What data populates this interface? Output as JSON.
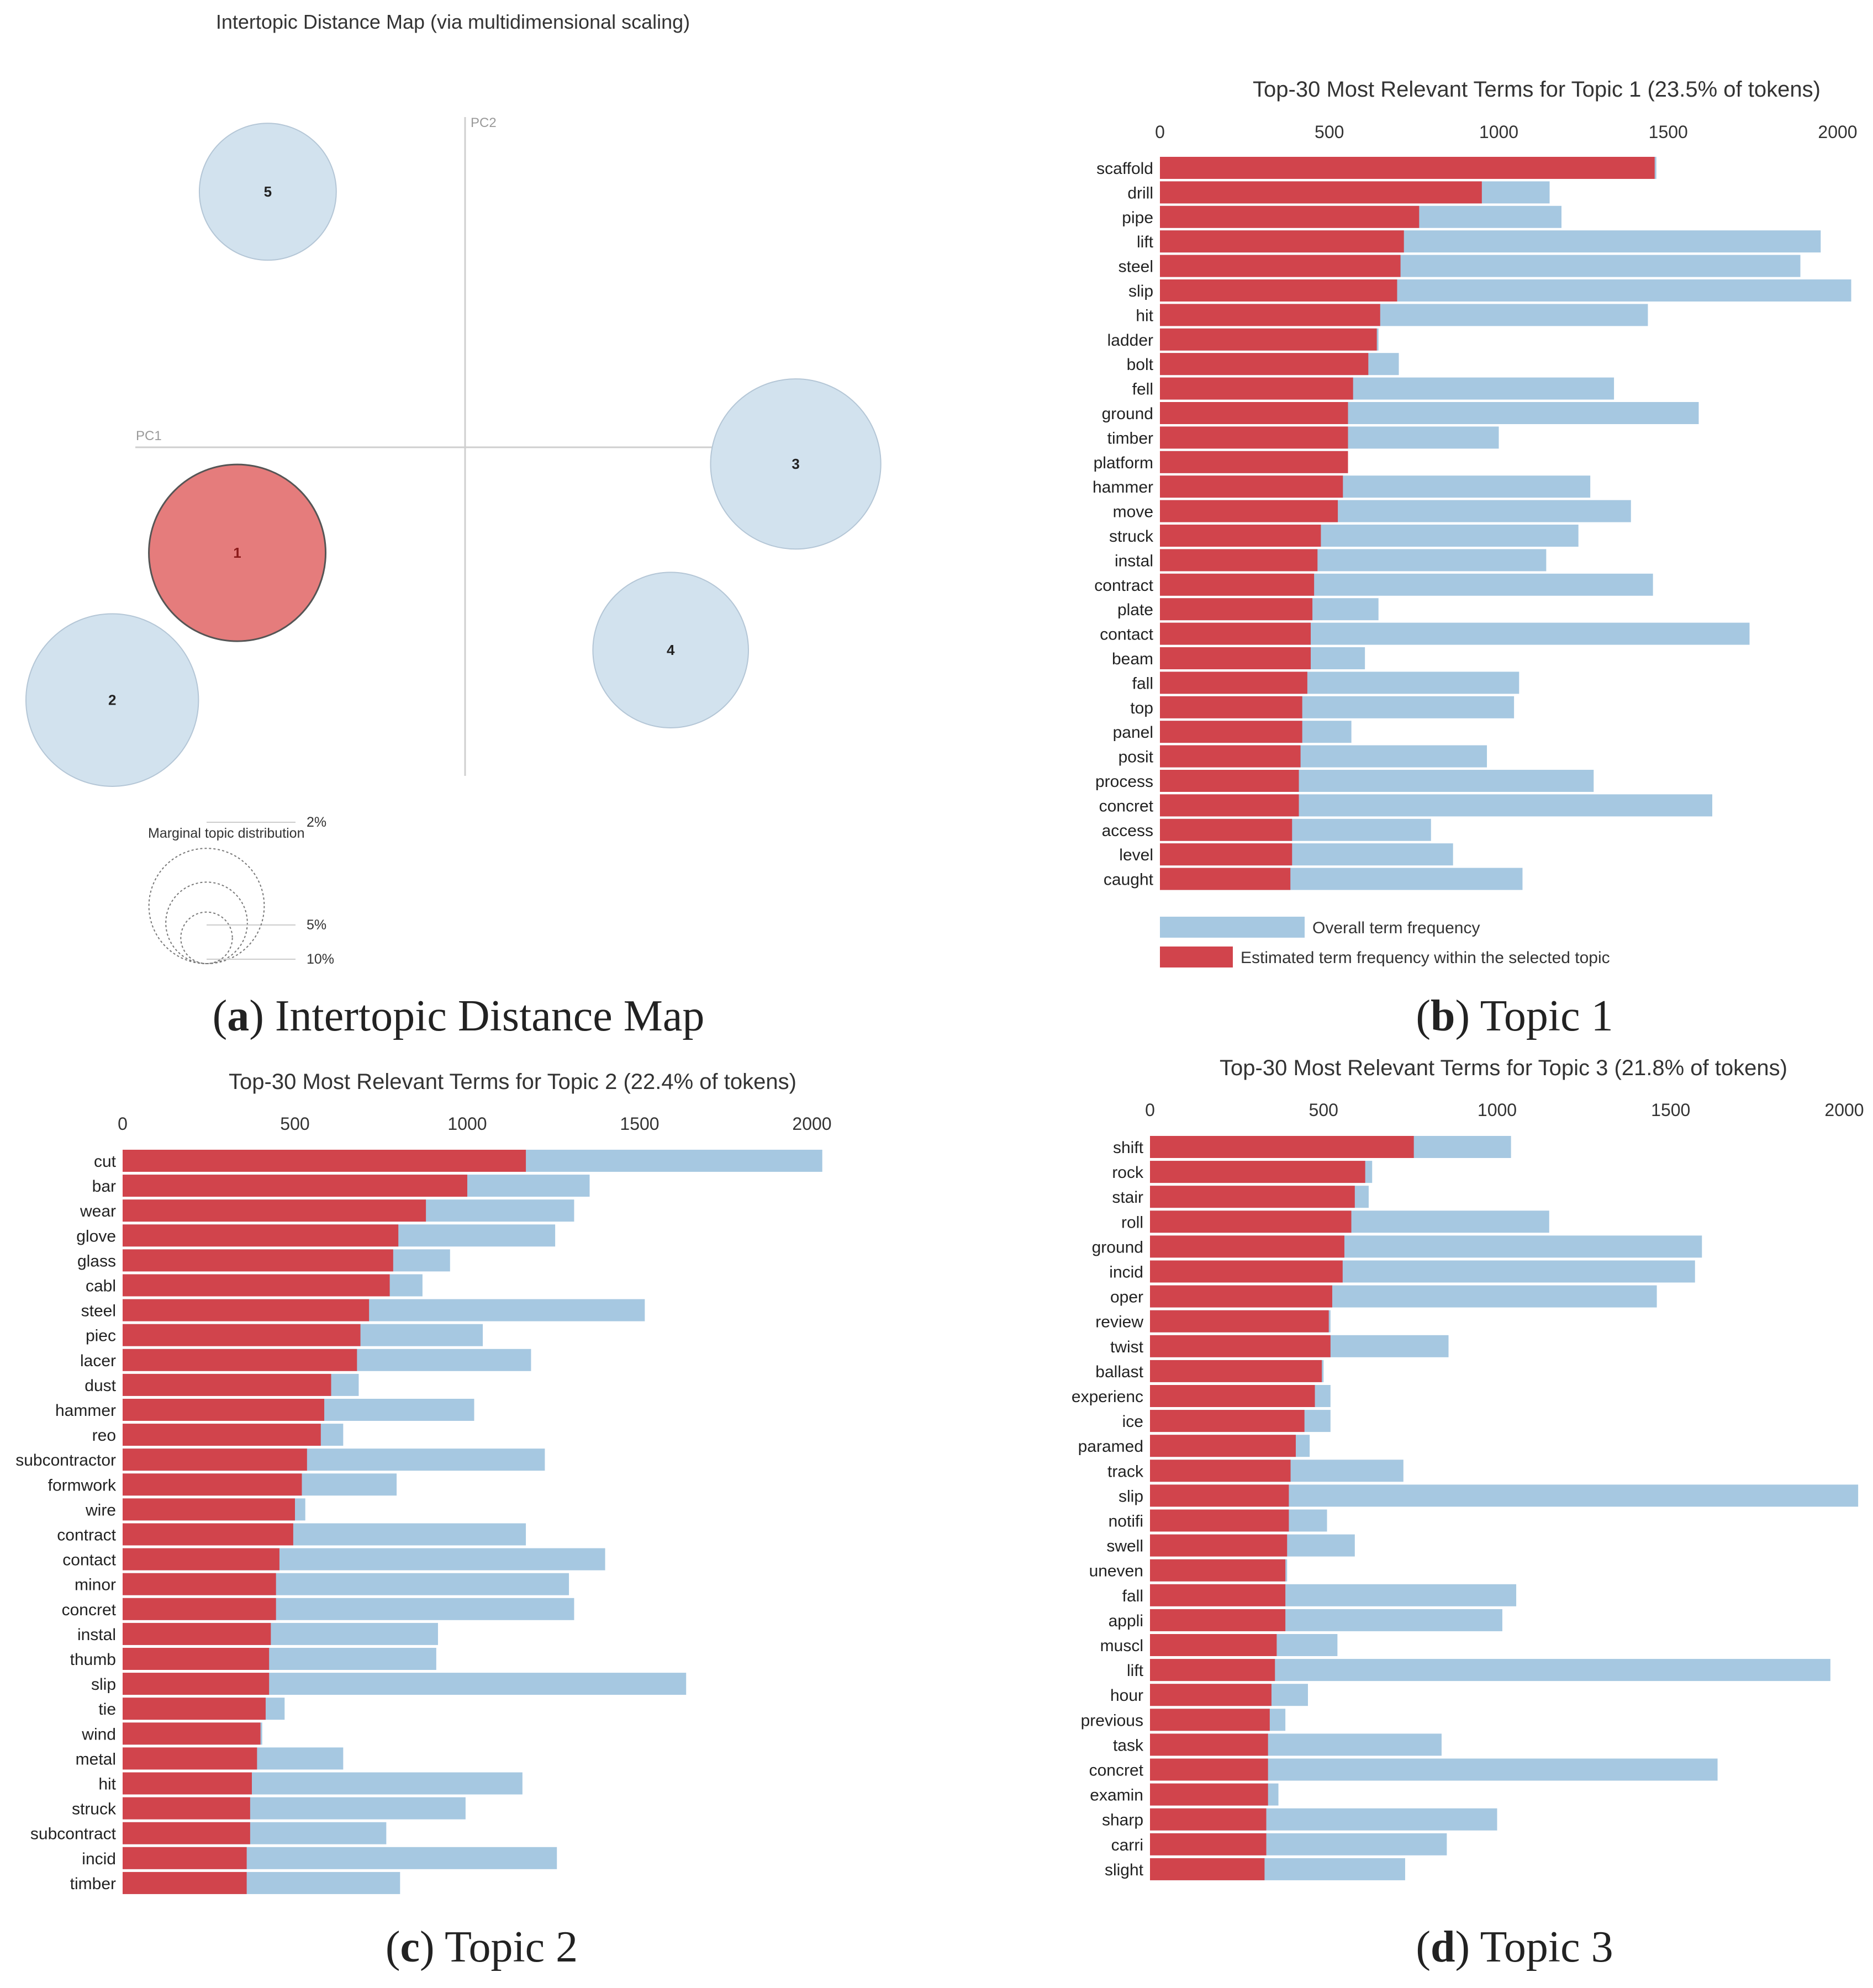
{
  "figure": {
    "colors": {
      "overall": "#a6c8e1",
      "topic": "#d1444c",
      "bubble": "#d2e2ee",
      "bubble_selected": "#e57c7c",
      "axis": "#cccccc",
      "text": "#222222"
    }
  },
  "chart_data": [
    {
      "id": "a",
      "type": "scatter",
      "title": "Intertopic Distance Map (via multidimensional scaling)",
      "caption_letter": "a",
      "caption_text": "Intertopic Distance Map",
      "x_axis_label": "PC1",
      "y_axis_label": "PC2",
      "selected_topic": "1",
      "topics": [
        {
          "label": "1",
          "pc1": -0.82,
          "pc2": -0.38,
          "share_pct": 23.5,
          "selected": true
        },
        {
          "label": "2",
          "pc1": -1.27,
          "pc2": -0.91,
          "share_pct": 22.4,
          "selected": false
        },
        {
          "label": "3",
          "pc1": 1.19,
          "pc2": -0.06,
          "share_pct": 21.8,
          "selected": false
        },
        {
          "label": "4",
          "pc1": 0.74,
          "pc2": -0.73,
          "share_pct": 18.2,
          "selected": false
        },
        {
          "label": "5",
          "pc1": -0.71,
          "pc2": 0.92,
          "share_pct": 14.1,
          "selected": false
        }
      ],
      "legend": {
        "title": "Marginal topic distribution",
        "entries": [
          {
            "label": "2%",
            "pct": 2
          },
          {
            "label": "5%",
            "pct": 5
          },
          {
            "label": "10%",
            "pct": 10
          }
        ]
      }
    },
    {
      "id": "b",
      "type": "bar",
      "title": "Top-30 Most Relevant Terms for Topic 1 (23.5% of tokens)",
      "caption_letter": "b",
      "caption_text": "Topic 1",
      "xlim": [
        0,
        2000
      ],
      "ticks": [
        0,
        500,
        1000,
        1500,
        2000
      ],
      "legend": {
        "overall": "Overall term frequency",
        "topic": "Estimated term frequency within the selected topic"
      },
      "terms": [
        {
          "term": "scaffold",
          "overall": 1465,
          "topic": 1460
        },
        {
          "term": "drill",
          "overall": 1150,
          "topic": 950
        },
        {
          "term": "pipe",
          "overall": 1185,
          "topic": 765
        },
        {
          "term": "lift",
          "overall": 1950,
          "topic": 720
        },
        {
          "term": "steel",
          "overall": 1890,
          "topic": 710
        },
        {
          "term": "slip",
          "overall": 2040,
          "topic": 700
        },
        {
          "term": "hit",
          "overall": 1440,
          "topic": 650
        },
        {
          "term": "ladder",
          "overall": 645,
          "topic": 640
        },
        {
          "term": "bolt",
          "overall": 705,
          "topic": 615
        },
        {
          "term": "fell",
          "overall": 1340,
          "topic": 570
        },
        {
          "term": "ground",
          "overall": 1590,
          "topic": 555
        },
        {
          "term": "timber",
          "overall": 1000,
          "topic": 555
        },
        {
          "term": "platform",
          "overall": 555,
          "topic": 555
        },
        {
          "term": "hammer",
          "overall": 1270,
          "topic": 540
        },
        {
          "term": "move",
          "overall": 1390,
          "topic": 525
        },
        {
          "term": "struck",
          "overall": 1235,
          "topic": 475
        },
        {
          "term": "instal",
          "overall": 1140,
          "topic": 465
        },
        {
          "term": "contract",
          "overall": 1455,
          "topic": 455
        },
        {
          "term": "plate",
          "overall": 645,
          "topic": 450
        },
        {
          "term": "contact",
          "overall": 1740,
          "topic": 445
        },
        {
          "term": "beam",
          "overall": 605,
          "topic": 445
        },
        {
          "term": "fall",
          "overall": 1060,
          "topic": 435
        },
        {
          "term": "top",
          "overall": 1045,
          "topic": 420
        },
        {
          "term": "panel",
          "overall": 565,
          "topic": 420
        },
        {
          "term": "posit",
          "overall": 965,
          "topic": 415
        },
        {
          "term": "process",
          "overall": 1280,
          "topic": 410
        },
        {
          "term": "concret",
          "overall": 1630,
          "topic": 410
        },
        {
          "term": "access",
          "overall": 800,
          "topic": 390
        },
        {
          "term": "level",
          "overall": 865,
          "topic": 390
        },
        {
          "term": "caught",
          "overall": 1070,
          "topic": 385
        }
      ]
    },
    {
      "id": "c",
      "type": "bar",
      "title": "Top-30 Most Relevant Terms for Topic 2 (22.4% of tokens)",
      "caption_letter": "c",
      "caption_text": "Topic 2",
      "xlim": [
        0,
        2000
      ],
      "ticks": [
        0,
        500,
        1000,
        1500,
        2000
      ],
      "terms": [
        {
          "term": "cut",
          "overall": 2030,
          "topic": 1170
        },
        {
          "term": "bar",
          "overall": 1355,
          "topic": 1000
        },
        {
          "term": "wear",
          "overall": 1310,
          "topic": 880
        },
        {
          "term": "glove",
          "overall": 1255,
          "topic": 800
        },
        {
          "term": "glass",
          "overall": 950,
          "topic": 785
        },
        {
          "term": "cabl",
          "overall": 870,
          "topic": 775
        },
        {
          "term": "steel",
          "overall": 1515,
          "topic": 715
        },
        {
          "term": "piec",
          "overall": 1045,
          "topic": 690
        },
        {
          "term": "lacer",
          "overall": 1185,
          "topic": 680
        },
        {
          "term": "dust",
          "overall": 685,
          "topic": 605
        },
        {
          "term": "hammer",
          "overall": 1020,
          "topic": 585
        },
        {
          "term": "reo",
          "overall": 640,
          "topic": 575
        },
        {
          "term": "subcontractor",
          "overall": 1225,
          "topic": 535
        },
        {
          "term": "formwork",
          "overall": 795,
          "topic": 520
        },
        {
          "term": "wire",
          "overall": 530,
          "topic": 500
        },
        {
          "term": "contract",
          "overall": 1170,
          "topic": 495
        },
        {
          "term": "contact",
          "overall": 1400,
          "topic": 455
        },
        {
          "term": "minor",
          "overall": 1295,
          "topic": 445
        },
        {
          "term": "concret",
          "overall": 1310,
          "topic": 445
        },
        {
          "term": "instal",
          "overall": 915,
          "topic": 430
        },
        {
          "term": "thumb",
          "overall": 910,
          "topic": 425
        },
        {
          "term": "slip",
          "overall": 1635,
          "topic": 425
        },
        {
          "term": "tie",
          "overall": 470,
          "topic": 415
        },
        {
          "term": "wind",
          "overall": 405,
          "topic": 400
        },
        {
          "term": "metal",
          "overall": 640,
          "topic": 390
        },
        {
          "term": "hit",
          "overall": 1160,
          "topic": 375
        },
        {
          "term": "struck",
          "overall": 995,
          "topic": 370
        },
        {
          "term": "subcontract",
          "overall": 765,
          "topic": 370
        },
        {
          "term": "incid",
          "overall": 1260,
          "topic": 360
        },
        {
          "term": "timber",
          "overall": 805,
          "topic": 360
        }
      ]
    },
    {
      "id": "d",
      "type": "bar",
      "title": "Top-30 Most Relevant Terms for Topic 3 (21.8% of tokens)",
      "caption_letter": "d",
      "caption_text": "Topic 3",
      "xlim": [
        0,
        2000
      ],
      "ticks": [
        0,
        500,
        1000,
        1500,
        2000
      ],
      "terms": [
        {
          "term": "shift",
          "overall": 1040,
          "topic": 760
        },
        {
          "term": "rock",
          "overall": 640,
          "topic": 620
        },
        {
          "term": "stair",
          "overall": 630,
          "topic": 590
        },
        {
          "term": "roll",
          "overall": 1150,
          "topic": 580
        },
        {
          "term": "ground",
          "overall": 1590,
          "topic": 560
        },
        {
          "term": "incid",
          "overall": 1570,
          "topic": 555
        },
        {
          "term": "oper",
          "overall": 1460,
          "topic": 525
        },
        {
          "term": "review",
          "overall": 520,
          "topic": 515
        },
        {
          "term": "twist",
          "overall": 860,
          "topic": 520
        },
        {
          "term": "ballast",
          "overall": 500,
          "topic": 495
        },
        {
          "term": "experienc",
          "overall": 520,
          "topic": 475
        },
        {
          "term": "ice",
          "overall": 520,
          "topic": 445
        },
        {
          "term": "paramed",
          "overall": 460,
          "topic": 420
        },
        {
          "term": "track",
          "overall": 730,
          "topic": 405
        },
        {
          "term": "slip",
          "overall": 2040,
          "topic": 400
        },
        {
          "term": "notifi",
          "overall": 510,
          "topic": 400
        },
        {
          "term": "swell",
          "overall": 590,
          "topic": 395
        },
        {
          "term": "uneven",
          "overall": 395,
          "topic": 390
        },
        {
          "term": "fall",
          "overall": 1055,
          "topic": 390
        },
        {
          "term": "appli",
          "overall": 1015,
          "topic": 390
        },
        {
          "term": "muscl",
          "overall": 540,
          "topic": 365
        },
        {
          "term": "lift",
          "overall": 1960,
          "topic": 360
        },
        {
          "term": "hour",
          "overall": 455,
          "topic": 350
        },
        {
          "term": "previous",
          "overall": 390,
          "topic": 345
        },
        {
          "term": "task",
          "overall": 840,
          "topic": 340
        },
        {
          "term": "concret",
          "overall": 1635,
          "topic": 340
        },
        {
          "term": "examin",
          "overall": 370,
          "topic": 340
        },
        {
          "term": "sharp",
          "overall": 1000,
          "topic": 335
        },
        {
          "term": "carri",
          "overall": 855,
          "topic": 335
        },
        {
          "term": "slight",
          "overall": 735,
          "topic": 330
        }
      ]
    }
  ]
}
